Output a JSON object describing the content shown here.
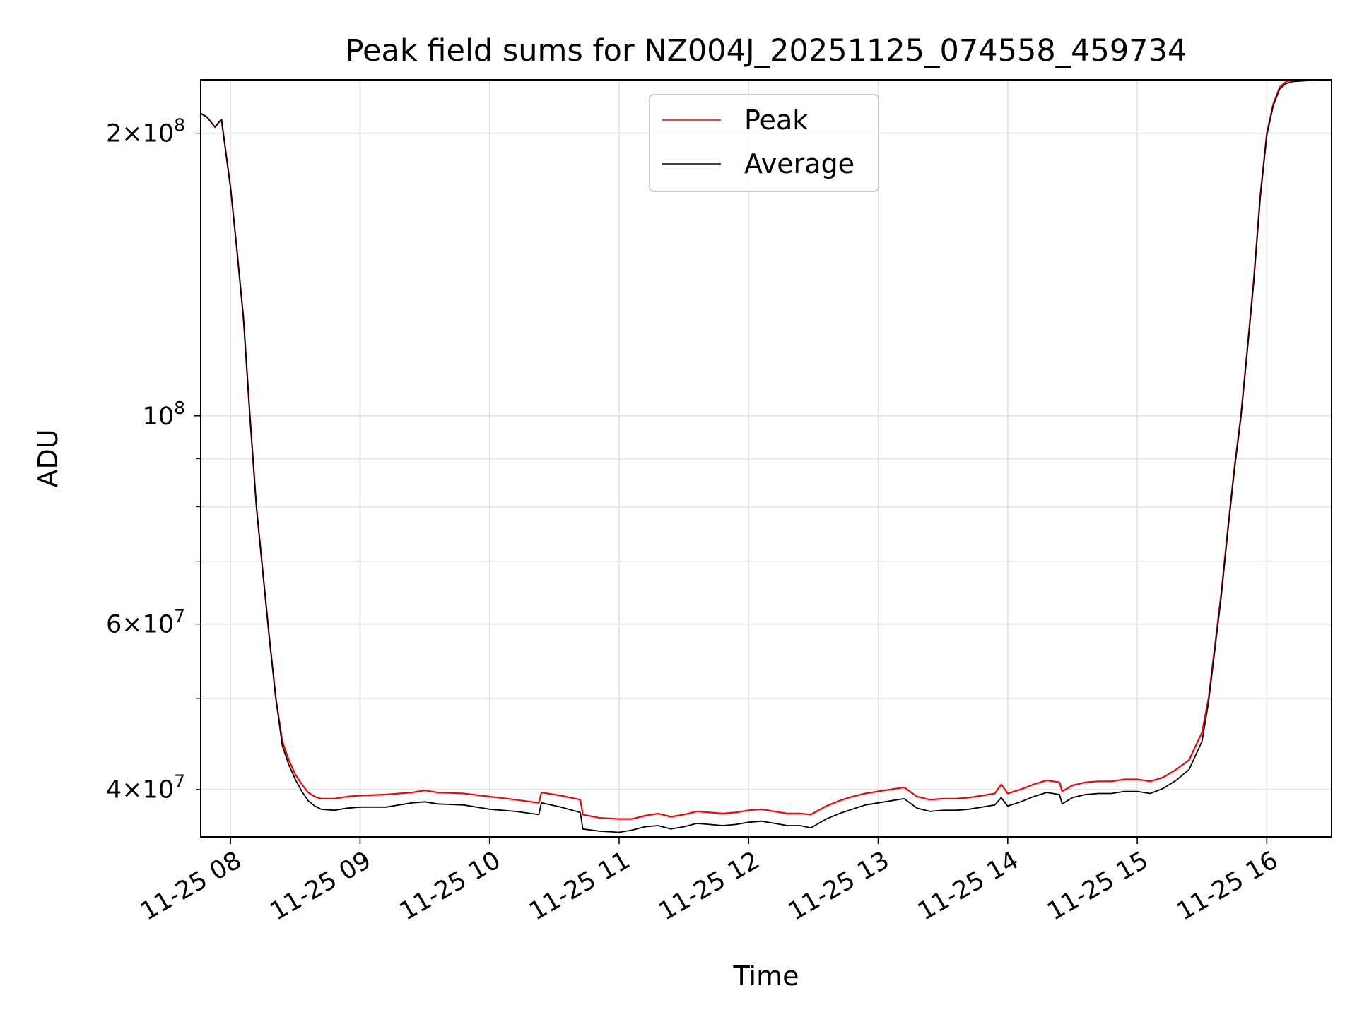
{
  "chart_data": {
    "type": "line",
    "title": "Peak field sums for NZ004J_20251125_074558_459734",
    "xlabel": "Time",
    "ylabel": "ADU",
    "yscale": "log",
    "ylim": [
      35600000,
      228000000
    ],
    "xlim_hours": [
      7.77,
      16.5
    ],
    "grid": true,
    "legend_position": "upper-center",
    "x_ticks": [
      {
        "hour": 8,
        "label": "11-25 08"
      },
      {
        "hour": 9,
        "label": "11-25 09"
      },
      {
        "hour": 10,
        "label": "11-25 10"
      },
      {
        "hour": 11,
        "label": "11-25 11"
      },
      {
        "hour": 12,
        "label": "11-25 12"
      },
      {
        "hour": 13,
        "label": "11-25 13"
      },
      {
        "hour": 14,
        "label": "11-25 14"
      },
      {
        "hour": 15,
        "label": "11-25 15"
      },
      {
        "hour": 16,
        "label": "11-25 16"
      }
    ],
    "y_ticks_major": [
      {
        "value": 100000000,
        "base": "10",
        "exp": "8"
      }
    ],
    "y_ticks_minor": [
      {
        "value": 40000000,
        "mant": "4",
        "base": "10",
        "exp": "7"
      },
      {
        "value": 60000000,
        "mant": "6",
        "base": "10",
        "exp": "7"
      },
      {
        "value": 200000000,
        "mant": "2",
        "base": "10",
        "exp": "8"
      }
    ],
    "y_grid_minor_values": [
      50000000,
      70000000,
      80000000,
      90000000
    ],
    "series": [
      {
        "name": "Peak",
        "color": "#ff0000",
        "x": [
          7.77,
          7.82,
          7.88,
          7.93,
          8.0,
          8.05,
          8.1,
          8.15,
          8.2,
          8.25,
          8.3,
          8.35,
          8.4,
          8.45,
          8.5,
          8.55,
          8.6,
          8.65,
          8.7,
          8.8,
          8.9,
          9.0,
          9.2,
          9.4,
          9.5,
          9.6,
          9.8,
          10.0,
          10.2,
          10.38,
          10.4,
          10.55,
          10.7,
          10.72,
          10.85,
          11.0,
          11.1,
          11.2,
          11.3,
          11.4,
          11.5,
          11.6,
          11.7,
          11.8,
          11.9,
          12.0,
          12.1,
          12.2,
          12.3,
          12.4,
          12.48,
          12.6,
          12.7,
          12.8,
          12.9,
          13.0,
          13.1,
          13.2,
          13.3,
          13.4,
          13.5,
          13.6,
          13.7,
          13.8,
          13.9,
          13.95,
          14.0,
          14.1,
          14.2,
          14.3,
          14.4,
          14.42,
          14.5,
          14.6,
          14.7,
          14.8,
          14.9,
          15.0,
          15.1,
          15.2,
          15.3,
          15.4,
          15.5,
          15.55,
          15.6,
          15.65,
          15.7,
          15.75,
          15.8,
          15.85,
          15.9,
          15.95,
          16.0,
          16.05,
          16.1,
          16.15,
          16.2,
          16.3,
          16.4,
          16.5
        ],
        "values": [
          210000000,
          208000000,
          203000000,
          207000000,
          175000000,
          150000000,
          127000000,
          100000000,
          80000000,
          68000000,
          58000000,
          50000000,
          45000000,
          43000000,
          41500000,
          40500000,
          39700000,
          39300000,
          39100000,
          39100000,
          39300000,
          39400000,
          39500000,
          39700000,
          39900000,
          39700000,
          39600000,
          39300000,
          39000000,
          38700000,
          39700000,
          39400000,
          39000000,
          37600000,
          37300000,
          37200000,
          37200000,
          37500000,
          37700000,
          37400000,
          37600000,
          37900000,
          37800000,
          37700000,
          37800000,
          38000000,
          38100000,
          37900000,
          37700000,
          37700000,
          37600000,
          38400000,
          38900000,
          39300000,
          39600000,
          39800000,
          40000000,
          40200000,
          39300000,
          39000000,
          39100000,
          39100000,
          39200000,
          39400000,
          39600000,
          40500000,
          39600000,
          40000000,
          40500000,
          40900000,
          40700000,
          39800000,
          40400000,
          40700000,
          40800000,
          40800000,
          41000000,
          41000000,
          40800000,
          41200000,
          42000000,
          43000000,
          46000000,
          50000000,
          57000000,
          65000000,
          76000000,
          88000000,
          100000000,
          118000000,
          140000000,
          172000000,
          200000000,
          215000000,
          224000000,
          227000000,
          228000000,
          228000000,
          228000000,
          228000000
        ]
      },
      {
        "name": "Average",
        "color": "#000000",
        "x": [
          7.77,
          7.82,
          7.88,
          7.93,
          8.0,
          8.05,
          8.1,
          8.15,
          8.2,
          8.25,
          8.3,
          8.35,
          8.4,
          8.45,
          8.5,
          8.55,
          8.6,
          8.65,
          8.7,
          8.8,
          8.9,
          9.0,
          9.2,
          9.4,
          9.5,
          9.6,
          9.8,
          10.0,
          10.2,
          10.38,
          10.4,
          10.55,
          10.7,
          10.72,
          10.85,
          11.0,
          11.1,
          11.2,
          11.3,
          11.4,
          11.5,
          11.6,
          11.7,
          11.8,
          11.9,
          12.0,
          12.1,
          12.2,
          12.3,
          12.4,
          12.48,
          12.6,
          12.7,
          12.8,
          12.9,
          13.0,
          13.1,
          13.2,
          13.3,
          13.4,
          13.5,
          13.6,
          13.7,
          13.8,
          13.9,
          13.95,
          14.0,
          14.1,
          14.2,
          14.3,
          14.4,
          14.42,
          14.5,
          14.6,
          14.7,
          14.8,
          14.9,
          15.0,
          15.1,
          15.2,
          15.3,
          15.4,
          15.5,
          15.55,
          15.6,
          15.65,
          15.7,
          15.75,
          15.8,
          15.85,
          15.9,
          15.95,
          16.0,
          16.05,
          16.1,
          16.15,
          16.2,
          16.3,
          16.4,
          16.5
        ],
        "values": [
          210000000,
          208000000,
          203000000,
          207000000,
          175000000,
          150000000,
          127000000,
          100000000,
          80000000,
          68000000,
          58000000,
          50000000,
          44500000,
          42500000,
          41000000,
          39800000,
          38900000,
          38400000,
          38100000,
          38000000,
          38200000,
          38300000,
          38300000,
          38700000,
          38800000,
          38600000,
          38500000,
          38100000,
          37900000,
          37600000,
          38700000,
          38300000,
          37800000,
          36300000,
          36100000,
          36000000,
          36200000,
          36500000,
          36600000,
          36300000,
          36500000,
          36800000,
          36700000,
          36600000,
          36700000,
          36900000,
          37000000,
          36800000,
          36600000,
          36600000,
          36400000,
          37200000,
          37700000,
          38100000,
          38500000,
          38700000,
          38900000,
          39100000,
          38200000,
          37900000,
          38000000,
          38000000,
          38100000,
          38300000,
          38500000,
          39200000,
          38400000,
          38800000,
          39300000,
          39700000,
          39500000,
          38600000,
          39200000,
          39500000,
          39600000,
          39600000,
          39800000,
          39800000,
          39600000,
          40100000,
          40900000,
          42000000,
          45000000,
          49500000,
          56500000,
          64500000,
          75500000,
          87500000,
          99500000,
          117500000,
          139000000,
          171000000,
          199000000,
          214000000,
          223000000,
          226000000,
          227000000,
          227500000,
          228000000,
          228000000
        ]
      }
    ]
  }
}
